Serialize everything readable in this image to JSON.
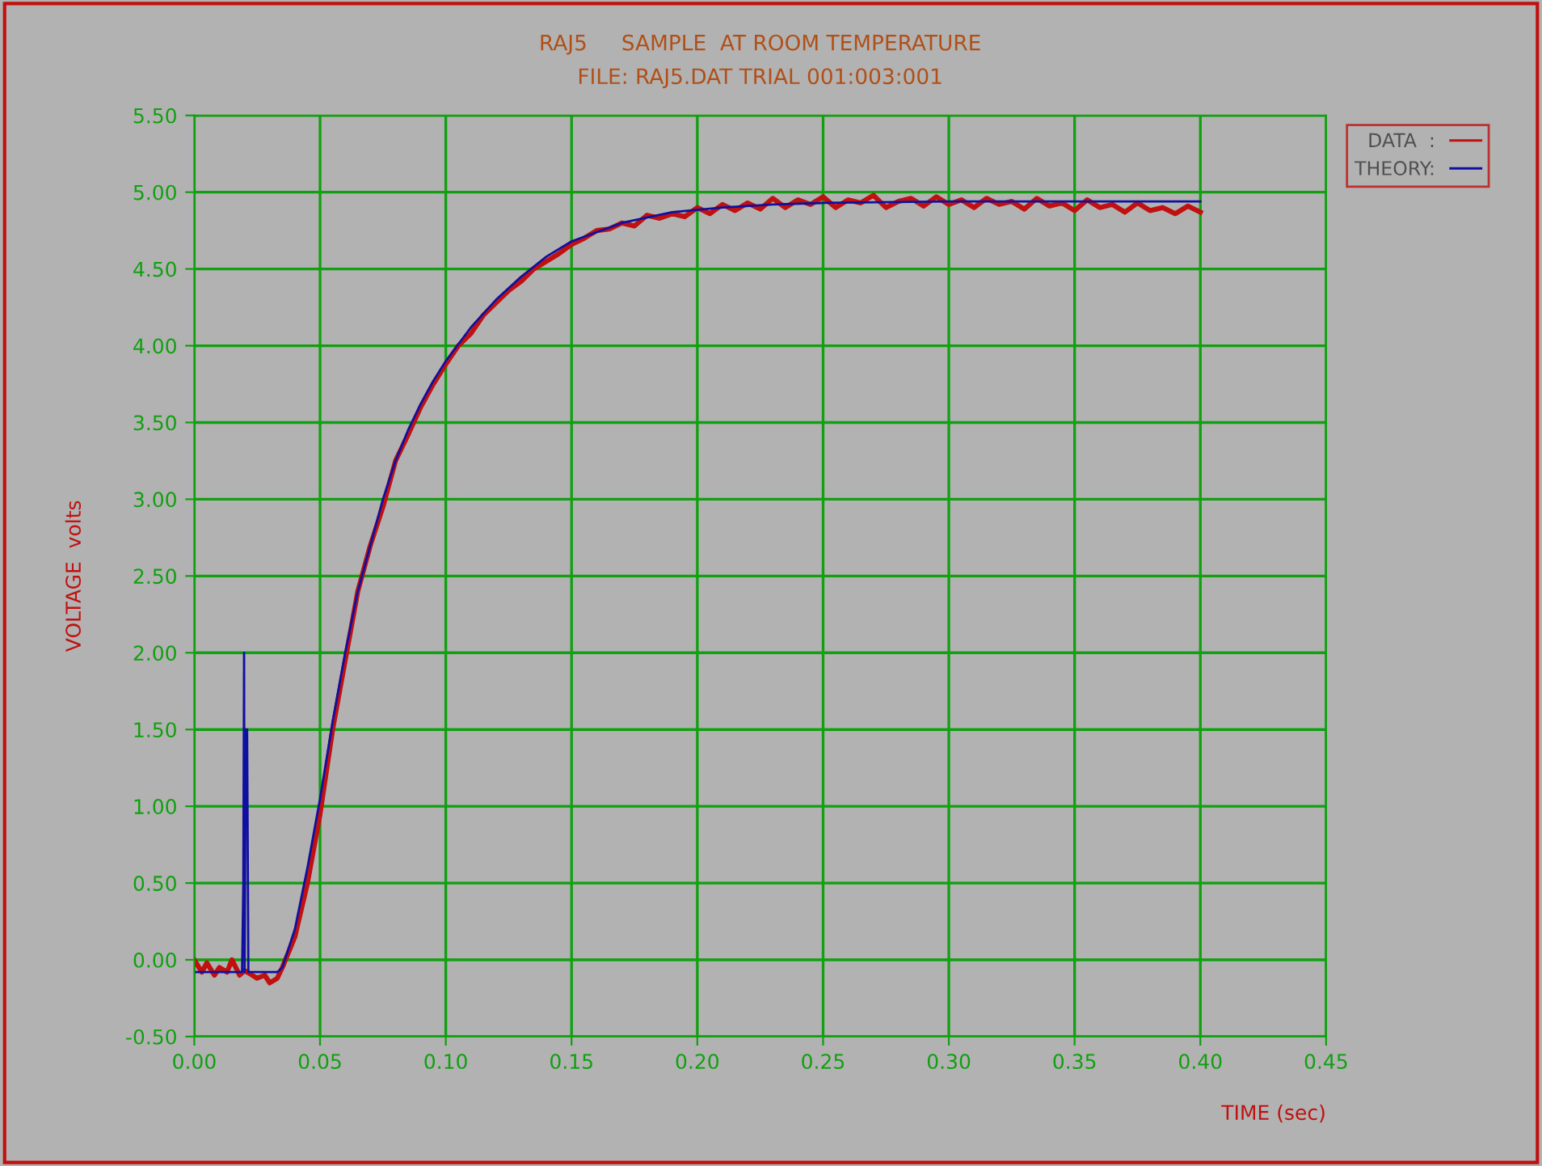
{
  "chart_data": {
    "type": "line",
    "title": "RAJ5     SAMPLE  AT ROOM TEMPERATURE",
    "subtitle": "FILE: RAJ5.DAT TRIAL 001:003:001",
    "xlabel": "TIME (sec)",
    "ylabel": "VOLTAGE  volts",
    "xlim": [
      0,
      0.45
    ],
    "ylim": [
      -0.5,
      5.5
    ],
    "xticks": [
      {
        "value": 0,
        "label": "0.00"
      },
      {
        "value": 0.05,
        "label": "0.05"
      },
      {
        "value": 0.1,
        "label": "0.10"
      },
      {
        "value": 0.15,
        "label": "0.15"
      },
      {
        "value": 0.2,
        "label": "0.20"
      },
      {
        "value": 0.25,
        "label": "0.25"
      },
      {
        "value": 0.3,
        "label": "0.30"
      },
      {
        "value": 0.35,
        "label": "0.35"
      },
      {
        "value": 0.4,
        "label": "0.40"
      },
      {
        "value": 0.45,
        "label": "0.45"
      }
    ],
    "yticks": [
      {
        "value": -0.5,
        "label": "-0.50"
      },
      {
        "value": 0,
        "label": "0.00"
      },
      {
        "value": 0.5,
        "label": "0.50"
      },
      {
        "value": 1,
        "label": "1.00"
      },
      {
        "value": 1.5,
        "label": "1.50"
      },
      {
        "value": 2,
        "label": "2.00"
      },
      {
        "value": 2.5,
        "label": "2.50"
      },
      {
        "value": 3,
        "label": "3.00"
      },
      {
        "value": 3.5,
        "label": "3.50"
      },
      {
        "value": 4,
        "label": "4.00"
      },
      {
        "value": 4.5,
        "label": "4.50"
      },
      {
        "value": 5,
        "label": "5.00"
      },
      {
        "value": 5.5,
        "label": "5.50"
      }
    ],
    "grid": true,
    "legend": "top right",
    "marker": "none",
    "line_style": "solid",
    "series": [
      {
        "name": "DATA  :",
        "color": "#c01010",
        "x": [
          0,
          0.003,
          0.005,
          0.008,
          0.01,
          0.013,
          0.015,
          0.018,
          0.02,
          0.023,
          0.025,
          0.028,
          0.03,
          0.033,
          0.035,
          0.04,
          0.045,
          0.05,
          0.055,
          0.06,
          0.065,
          0.07,
          0.075,
          0.08,
          0.085,
          0.09,
          0.095,
          0.1,
          0.105,
          0.11,
          0.115,
          0.12,
          0.125,
          0.13,
          0.135,
          0.14,
          0.145,
          0.15,
          0.155,
          0.16,
          0.165,
          0.17,
          0.175,
          0.18,
          0.185,
          0.19,
          0.195,
          0.2,
          0.205,
          0.21,
          0.215,
          0.22,
          0.225,
          0.23,
          0.235,
          0.24,
          0.245,
          0.25,
          0.255,
          0.26,
          0.265,
          0.27,
          0.275,
          0.28,
          0.285,
          0.29,
          0.295,
          0.3,
          0.305,
          0.31,
          0.315,
          0.32,
          0.325,
          0.33,
          0.335,
          0.34,
          0.345,
          0.35,
          0.355,
          0.36,
          0.365,
          0.37,
          0.375,
          0.38,
          0.385,
          0.39,
          0.395,
          0.4
        ],
        "values": [
          0,
          -0.08,
          -0.02,
          -0.1,
          -0.05,
          -0.08,
          0,
          -0.1,
          -0.07,
          -0.1,
          -0.12,
          -0.1,
          -0.15,
          -0.12,
          -0.05,
          0.15,
          0.5,
          0.95,
          1.5,
          1.95,
          2.4,
          2.7,
          2.95,
          3.25,
          3.42,
          3.6,
          3.75,
          3.88,
          4.0,
          4.08,
          4.2,
          4.28,
          4.36,
          4.42,
          4.5,
          4.55,
          4.6,
          4.66,
          4.7,
          4.75,
          4.76,
          4.8,
          4.78,
          4.85,
          4.83,
          4.86,
          4.84,
          4.9,
          4.86,
          4.92,
          4.88,
          4.93,
          4.89,
          4.96,
          4.9,
          4.95,
          4.92,
          4.97,
          4.9,
          4.95,
          4.93,
          4.98,
          4.9,
          4.94,
          4.96,
          4.91,
          4.97,
          4.92,
          4.95,
          4.9,
          4.96,
          4.92,
          4.94,
          4.89,
          4.96,
          4.91,
          4.93,
          4.88,
          4.95,
          4.9,
          4.92,
          4.87,
          4.93,
          4.88,
          4.9,
          4.86,
          4.91,
          4.87
        ]
      },
      {
        "name": "THEORY:",
        "color": "#1010a0",
        "x": [
          0,
          0.019,
          0.0195,
          0.0198,
          0.02,
          0.0205,
          0.021,
          0.0215,
          0.022,
          0.033,
          0.035,
          0.04,
          0.045,
          0.05,
          0.055,
          0.06,
          0.065,
          0.07,
          0.075,
          0.08,
          0.085,
          0.09,
          0.095,
          0.1,
          0.11,
          0.12,
          0.13,
          0.14,
          0.15,
          0.17,
          0.19,
          0.21,
          0.23,
          0.25,
          0.3,
          0.35,
          0.4
        ],
        "values": [
          -0.08,
          -0.08,
          0.5,
          2.0,
          -0.08,
          1.5,
          1.5,
          -0.08,
          -0.08,
          -0.08,
          -0.05,
          0.2,
          0.6,
          1.05,
          1.55,
          2.0,
          2.4,
          2.7,
          3.0,
          3.25,
          3.45,
          3.62,
          3.77,
          3.9,
          4.12,
          4.3,
          4.45,
          4.58,
          4.68,
          4.8,
          4.87,
          4.9,
          4.92,
          4.93,
          4.94,
          4.94,
          4.94
        ]
      }
    ]
  }
}
